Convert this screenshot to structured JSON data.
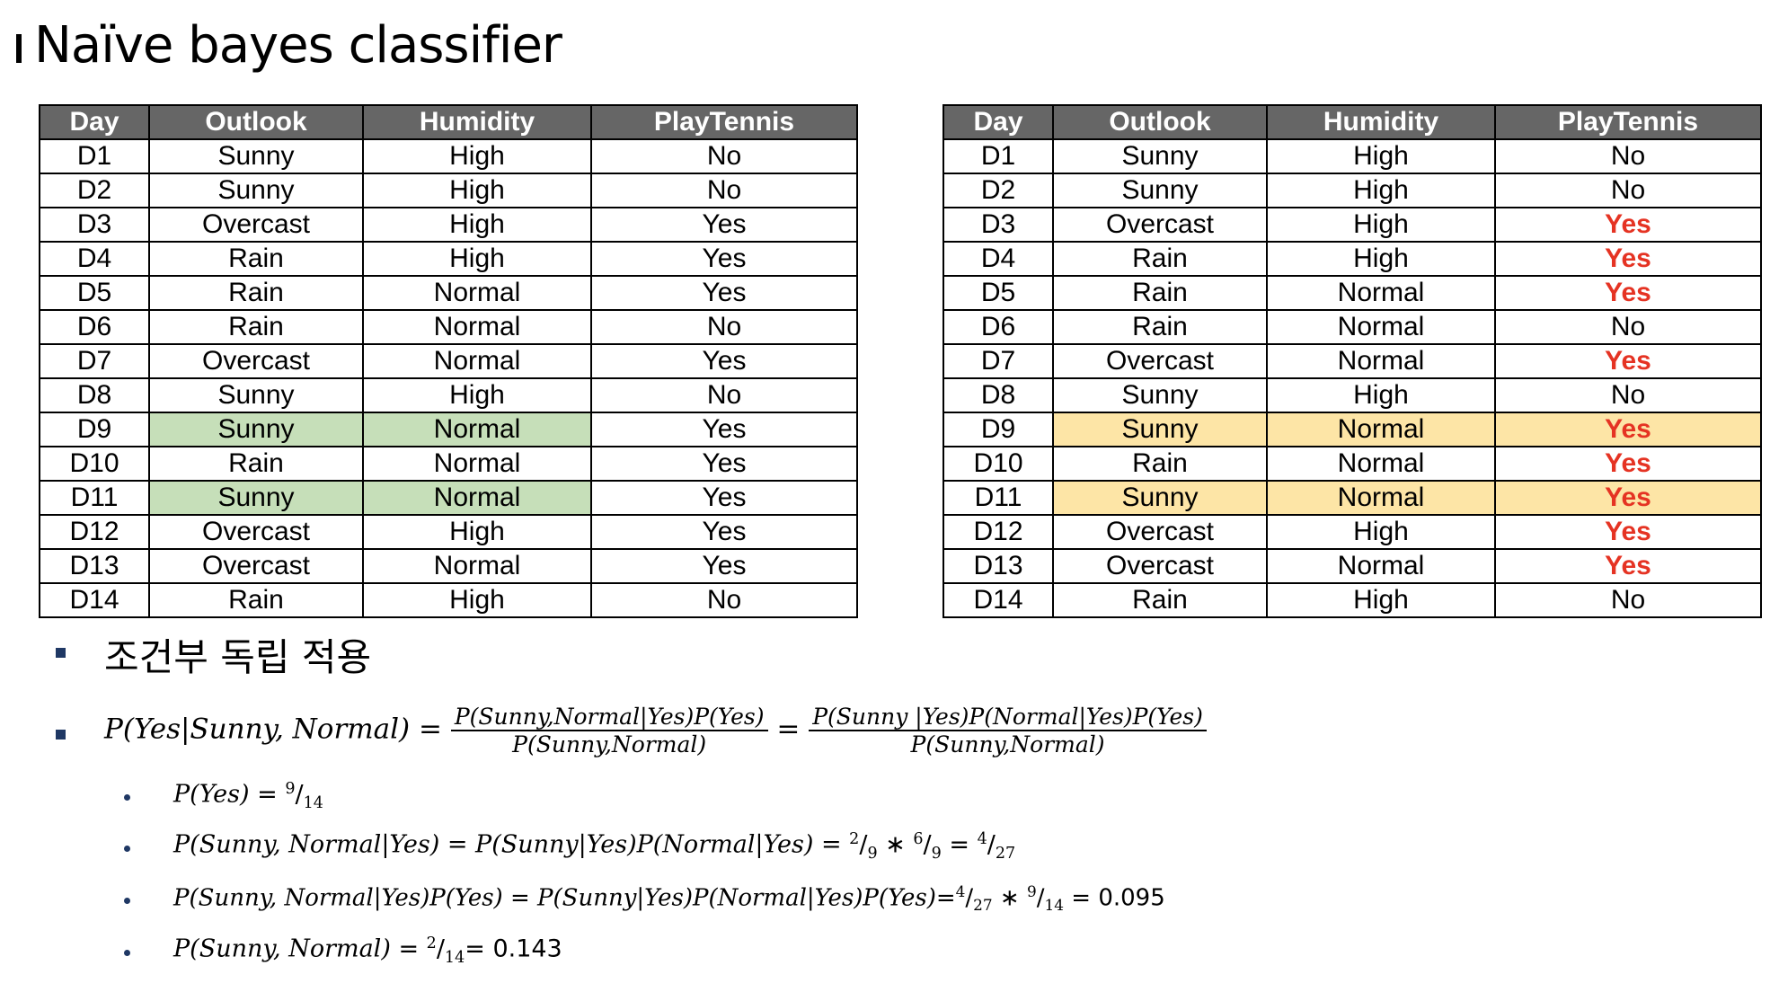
{
  "title": "Naïve bayes classifier",
  "headers": [
    "Day",
    "Outlook",
    "Humidity",
    "PlayTennis"
  ],
  "rows": [
    [
      "D1",
      "Sunny",
      "High",
      "No"
    ],
    [
      "D2",
      "Sunny",
      "High",
      "No"
    ],
    [
      "D3",
      "Overcast",
      "High",
      "Yes"
    ],
    [
      "D4",
      "Rain",
      "High",
      "Yes"
    ],
    [
      "D5",
      "Rain",
      "Normal",
      "Yes"
    ],
    [
      "D6",
      "Rain",
      "Normal",
      "No"
    ],
    [
      "D7",
      "Overcast",
      "Normal",
      "Yes"
    ],
    [
      "D8",
      "Sunny",
      "High",
      "No"
    ],
    [
      "D9",
      "Sunny",
      "Normal",
      "Yes"
    ],
    [
      "D10",
      "Rain",
      "Normal",
      "Yes"
    ],
    [
      "D11",
      "Sunny",
      "Normal",
      "Yes"
    ],
    [
      "D12",
      "Overcast",
      "High",
      "Yes"
    ],
    [
      "D13",
      "Overcast",
      "Normal",
      "Yes"
    ],
    [
      "D14",
      "Rain",
      "High",
      "No"
    ]
  ],
  "highlight_rows": [
    "D9",
    "D11"
  ],
  "colors": {
    "header_bg": "#666666",
    "left_highlight": "#c6dfb9",
    "right_highlight": "#fde5a6",
    "yes_red": "#e53323",
    "bullet": "#1f3864"
  },
  "bullets": {
    "korean": "조건부 독립 적용",
    "eq_main": {
      "lhs": "P(Yes|Sunny, Normal) =",
      "f1_num": "P(Sunny,Normal|Yes)P(Yes)",
      "f1_den": "P(Sunny,Normal)",
      "eq": "=",
      "f2_num": "P(Sunny |Yes)P(Normal|Yes)P(Yes)",
      "f2_den": "P(Sunny,Normal)"
    },
    "sub1": {
      "expr": "P(Yes)",
      "rest": " = ",
      "n": "9",
      "d": "14"
    },
    "sub2": {
      "expr": "P(Sunny, Normal|Yes) = P(Sunny|Yes)P(Normal|Yes) = ",
      "n1": "2",
      "d1": "9",
      "times": " ∗ ",
      "n2": "6",
      "d2": "9",
      "eq": " = ",
      "n3": "4",
      "d3": "27"
    },
    "sub3": {
      "expr": "P(Sunny, Normal|Yes)P(Yes)",
      "mid": " = ",
      "expr2": "P(Sunny|Yes)P(Normal|Yes)P(Yes)",
      "eq": "=",
      "n1": "4",
      "d1": "27",
      "times": " ∗ ",
      "n2": "9",
      "d2": "14",
      "result": " = 0.095"
    },
    "sub4": {
      "expr": "P(Sunny, Normal)",
      "rest": " = ",
      "n": "2",
      "d": "14",
      "result": "= 0.143"
    }
  }
}
